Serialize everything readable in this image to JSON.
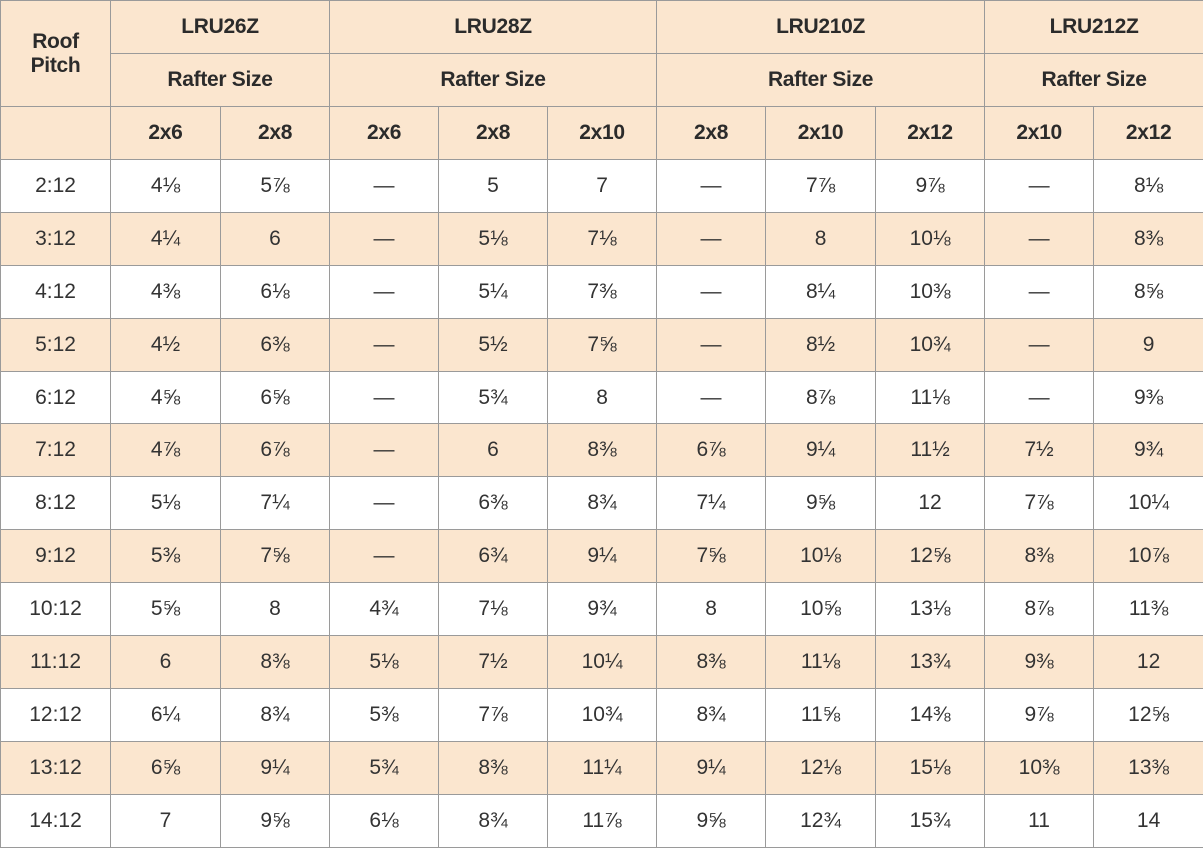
{
  "table": {
    "header": {
      "corner": "Roof Pitch",
      "models": [
        "LRU26Z",
        "LRU28Z",
        "LRU210Z",
        "LRU212Z"
      ],
      "subheaders": [
        "Rafter Size",
        "Rafter Size",
        "Rafter Size",
        "Rafter Size"
      ],
      "sizes": [
        "2x6",
        "2x8",
        "2x6",
        "2x8",
        "2x10",
        "2x8",
        "2x10",
        "2x12",
        "2x10",
        "2x12"
      ]
    },
    "rows": [
      [
        "2:12",
        "4⅛",
        "5⅞",
        "—",
        "5",
        "7",
        "—",
        "7⅞",
        "9⅞",
        "—",
        "8⅛"
      ],
      [
        "3:12",
        "4¼",
        "6",
        "—",
        "5⅛",
        "7⅛",
        "—",
        "8",
        "10⅛",
        "—",
        "8⅜"
      ],
      [
        "4:12",
        "4⅜",
        "6⅛",
        "—",
        "5¼",
        "7⅜",
        "—",
        "8¼",
        "10⅜",
        "—",
        "8⅝"
      ],
      [
        "5:12",
        "4½",
        "6⅜",
        "—",
        "5½",
        "7⅝",
        "—",
        "8½",
        "10¾",
        "—",
        "9"
      ],
      [
        "6:12",
        "4⅝",
        "6⅝",
        "—",
        "5¾",
        "8",
        "—",
        "8⅞",
        "11⅛",
        "—",
        "9⅜"
      ],
      [
        "7:12",
        "4⅞",
        "6⅞",
        "—",
        "6",
        "8⅜",
        "6⅞",
        "9¼",
        "11½",
        "7½",
        "9¾"
      ],
      [
        "8:12",
        "5⅛",
        "7¼",
        "—",
        "6⅜",
        "8¾",
        "7¼",
        "9⅝",
        "12",
        "7⅞",
        "10¼"
      ],
      [
        "9:12",
        "5⅜",
        "7⅝",
        "—",
        "6¾",
        "9¼",
        "7⅝",
        "10⅛",
        "12⅝",
        "8⅜",
        "10⅞"
      ],
      [
        "10:12",
        "5⅝",
        "8",
        "4¾",
        "7⅛",
        "9¾",
        "8",
        "10⅝",
        "13⅛",
        "8⅞",
        "11⅜"
      ],
      [
        "11:12",
        "6",
        "8⅜",
        "5⅛",
        "7½",
        "10¼",
        "8⅜",
        "11⅛",
        "13¾",
        "9⅜",
        "12"
      ],
      [
        "12:12",
        "6¼",
        "8¾",
        "5⅜",
        "7⅞",
        "10¾",
        "8¾",
        "11⅝",
        "14⅜",
        "9⅞",
        "12⅝"
      ],
      [
        "13:12",
        "6⅝",
        "9¼",
        "5¾",
        "8⅜",
        "11¼",
        "9¼",
        "12⅛",
        "15⅛",
        "10⅜",
        "13⅜"
      ],
      [
        "14:12",
        "7",
        "9⅝",
        "6⅛",
        "8¾",
        "11⅞",
        "9⅝",
        "12¾",
        "15¾",
        "11",
        "14"
      ]
    ]
  }
}
